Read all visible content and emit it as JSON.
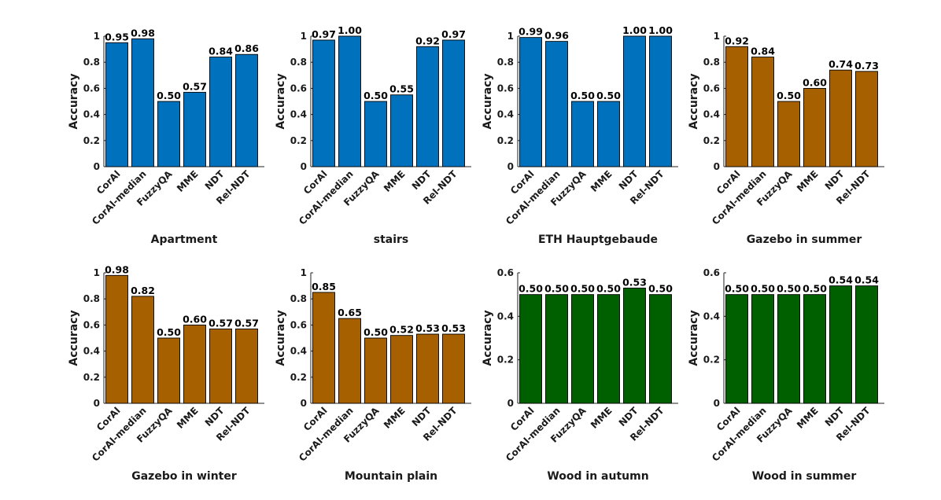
{
  "colors": {
    "blue": "#0072BD",
    "orange": "#A66000",
    "green": "#006000"
  },
  "chart_data": [
    {
      "type": "bar",
      "title": "Apartment",
      "ylabel": "Accuracy",
      "xlabel": "",
      "color": "#0072BD",
      "categories": [
        "CorAl",
        "CorAl-median",
        "FuzzyQA",
        "MME",
        "NDT",
        "Rel-NDT"
      ],
      "values": [
        0.95,
        0.98,
        0.5,
        0.57,
        0.84,
        0.86
      ],
      "labels": [
        "0.95",
        "0.98",
        "0.50",
        "0.57",
        "0.84",
        "0.86"
      ],
      "ylim": [
        0,
        1
      ],
      "yticks": [
        "0",
        "0.2",
        "0.4",
        "0.6",
        "0.8",
        "1"
      ],
      "ytick_values": [
        0,
        0.2,
        0.4,
        0.6,
        0.8,
        1
      ]
    },
    {
      "type": "bar",
      "title": "stairs",
      "ylabel": "Accuracy",
      "xlabel": "",
      "color": "#0072BD",
      "categories": [
        "CorAl",
        "CorAl-median",
        "FuzzyQA",
        "MME",
        "NDT",
        "Rel-NDT"
      ],
      "values": [
        0.97,
        1.0,
        0.5,
        0.55,
        0.92,
        0.97
      ],
      "labels": [
        "0.97",
        "1.00",
        "0.50",
        "0.55",
        "0.92",
        "0.97"
      ],
      "ylim": [
        0,
        1
      ],
      "yticks": [
        "0",
        "0.2",
        "0.4",
        "0.6",
        "0.8",
        "1"
      ],
      "ytick_values": [
        0,
        0.2,
        0.4,
        0.6,
        0.8,
        1
      ]
    },
    {
      "type": "bar",
      "title": "ETH Hauptgebaude",
      "ylabel": "Accuracy",
      "xlabel": "",
      "color": "#0072BD",
      "categories": [
        "CorAl",
        "CorAl-median",
        "FuzzyQA",
        "MME",
        "NDT",
        "Rel-NDT"
      ],
      "values": [
        0.99,
        0.96,
        0.5,
        0.5,
        1.0,
        1.0
      ],
      "labels": [
        "0.99",
        "0.96",
        "0.50",
        "0.50",
        "1.00",
        "1.00"
      ],
      "ylim": [
        0,
        1
      ],
      "yticks": [
        "0",
        "0.2",
        "0.4",
        "0.6",
        "0.8",
        "1"
      ],
      "ytick_values": [
        0,
        0.2,
        0.4,
        0.6,
        0.8,
        1
      ]
    },
    {
      "type": "bar",
      "title": "Gazebo in summer",
      "ylabel": "Accuracy",
      "xlabel": "",
      "color": "#A66000",
      "categories": [
        "CorAl",
        "CorAl-median",
        "FuzzyQA",
        "MME",
        "NDT",
        "Rel-NDT"
      ],
      "values": [
        0.92,
        0.84,
        0.5,
        0.6,
        0.74,
        0.73
      ],
      "labels": [
        "0.92",
        "0.84",
        "0.50",
        "0.60",
        "0.74",
        "0.73"
      ],
      "ylim": [
        0,
        1
      ],
      "yticks": [
        "0",
        "0.2",
        "0.4",
        "0.6",
        "0.8",
        "1"
      ],
      "ytick_values": [
        0,
        0.2,
        0.4,
        0.6,
        0.8,
        1
      ]
    },
    {
      "type": "bar",
      "title": "Gazebo in winter",
      "ylabel": "Accuracy",
      "xlabel": "",
      "color": "#A66000",
      "categories": [
        "CorAl",
        "CorAl-median",
        "FuzzyQA",
        "MME",
        "NDT",
        "Rel-NDT"
      ],
      "values": [
        0.98,
        0.82,
        0.5,
        0.6,
        0.57,
        0.57
      ],
      "labels": [
        "0.98",
        "0.82",
        "0.50",
        "0.60",
        "0.57",
        "0.57"
      ],
      "ylim": [
        0,
        1
      ],
      "yticks": [
        "0",
        "0.2",
        "0.4",
        "0.6",
        "0.8",
        "1"
      ],
      "ytick_values": [
        0,
        0.2,
        0.4,
        0.6,
        0.8,
        1
      ]
    },
    {
      "type": "bar",
      "title": "Mountain plain",
      "ylabel": "Accuracy",
      "xlabel": "",
      "color": "#A66000",
      "categories": [
        "CorAl",
        "CorAl-median",
        "FuzzyQA",
        "MME",
        "NDT",
        "Rel-NDT"
      ],
      "values": [
        0.85,
        0.65,
        0.5,
        0.52,
        0.53,
        0.53
      ],
      "labels": [
        "0.85",
        "0.65",
        "0.50",
        "0.52",
        "0.53",
        "0.53"
      ],
      "ylim": [
        0,
        1
      ],
      "yticks": [
        "0",
        "0.2",
        "0.4",
        "0.6",
        "0.8",
        "1"
      ],
      "ytick_values": [
        0,
        0.2,
        0.4,
        0.6,
        0.8,
        1
      ]
    },
    {
      "type": "bar",
      "title": "Wood in autumn",
      "ylabel": "Accuracy",
      "xlabel": "",
      "color": "#006000",
      "categories": [
        "CorAl",
        "CorAl-median",
        "FuzzyQA",
        "MME",
        "NDT",
        "Rel-NDT"
      ],
      "values": [
        0.5,
        0.5,
        0.5,
        0.5,
        0.53,
        0.5
      ],
      "labels": [
        "0.50",
        "0.50",
        "0.50",
        "0.50",
        "0.53",
        "0.50"
      ],
      "ylim": [
        0,
        0.6
      ],
      "yticks": [
        "0",
        "0.2",
        "0.4",
        "0.6"
      ],
      "ytick_values": [
        0,
        0.2,
        0.4,
        0.6
      ]
    },
    {
      "type": "bar",
      "title": "Wood in summer",
      "ylabel": "Accuracy",
      "xlabel": "",
      "color": "#006000",
      "categories": [
        "CorAl",
        "CorAl-median",
        "FuzzyQA",
        "MME",
        "NDT",
        "Rel-NDT"
      ],
      "values": [
        0.5,
        0.5,
        0.5,
        0.5,
        0.54,
        0.54
      ],
      "labels": [
        "0.50",
        "0.50",
        "0.50",
        "0.50",
        "0.54",
        "0.54"
      ],
      "ylim": [
        0,
        0.6
      ],
      "yticks": [
        "0",
        "0.2",
        "0.4",
        "0.6"
      ],
      "ytick_values": [
        0,
        0.2,
        0.4,
        0.6
      ]
    }
  ]
}
